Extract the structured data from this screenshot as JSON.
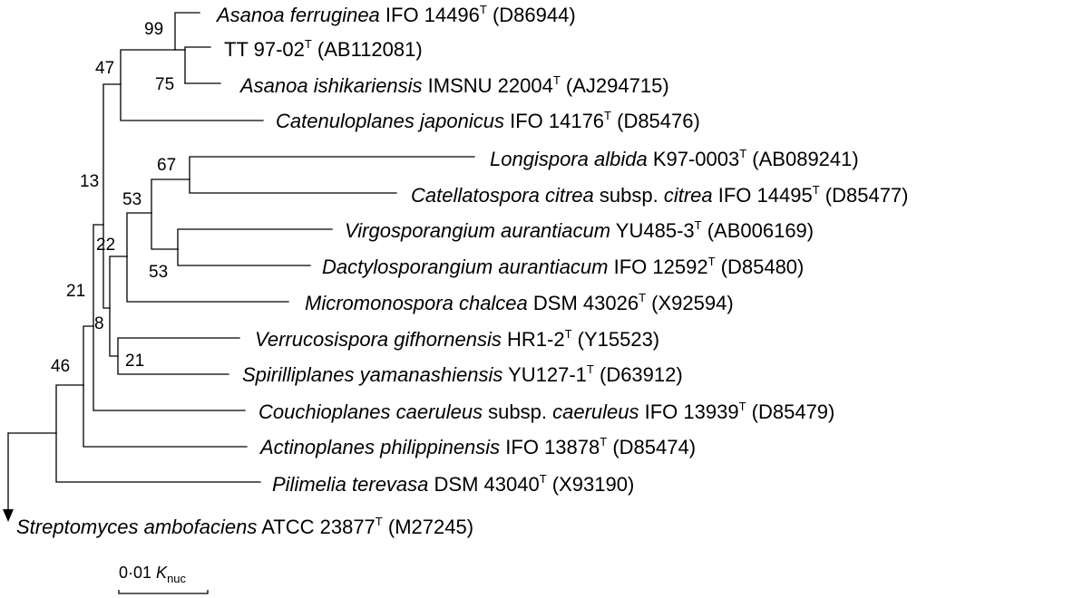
{
  "taxa": [
    {
      "id": "ferruginea",
      "italic": "Asanoa ferruginea",
      "rest": " IFO 14496",
      "sup": "T",
      "acc": " (D86944)"
    },
    {
      "id": "tt9702",
      "italic": "",
      "rest": "TT 97-02",
      "sup": "T",
      "acc": " (AB112081)"
    },
    {
      "id": "ishikariensis",
      "italic": "Asanoa ishikariensis",
      "rest": " IMSNU 22004",
      "sup": "T",
      "acc": " (AJ294715)"
    },
    {
      "id": "catenuloplanes",
      "italic": "Catenuloplanes japonicus",
      "rest": " IFO 14176",
      "sup": "T",
      "acc": " (D85476)"
    },
    {
      "id": "longispora",
      "italic": "Longispora albida",
      "rest": " K97-0003",
      "sup": "T",
      "acc": " (AB089241)"
    },
    {
      "id": "catellatospora",
      "italic": "Catellatospora citrea",
      "rest": " subsp. ",
      "italic2": "citrea",
      "rest2": " IFO 14495",
      "sup": "T",
      "acc": " (D85477)"
    },
    {
      "id": "virgosporangium",
      "italic": "Virgosporangium aurantiacum",
      "rest": " YU485-3",
      "sup": "T",
      "acc": " (AB006169)"
    },
    {
      "id": "dactylosporangium",
      "italic": "Dactylosporangium aurantiacum",
      "rest": " IFO 12592",
      "sup": "T",
      "acc": " (D85480)"
    },
    {
      "id": "micromonospora",
      "italic": "Micromonospora chalcea",
      "rest": " DSM 43026",
      "sup": "T",
      "acc": " (X92594)"
    },
    {
      "id": "verrucosispora",
      "italic": "Verrucosispora gifhornensis",
      "rest": " HR1-2",
      "sup": "T",
      "acc": " (Y15523)"
    },
    {
      "id": "spirilliplanes",
      "italic": "Spirilliplanes yamanashiensis",
      "rest": " YU127-1",
      "sup": "T",
      "acc": " (D63912)"
    },
    {
      "id": "couchioplanes",
      "italic": "Couchioplanes caeruleus",
      "rest": " subsp. ",
      "italic2": "caeruleus",
      "rest2": " IFO 13939",
      "sup": "T",
      "acc": " (D85479)"
    },
    {
      "id": "actinoplanes",
      "italic": "Actinoplanes philippinensis",
      "rest": " IFO 13878",
      "sup": "T",
      "acc": " (D85474)"
    },
    {
      "id": "pilimelia",
      "italic": "Pilimelia terevasa",
      "rest": " DSM 43040",
      "sup": "T",
      "acc": " (X93190)"
    },
    {
      "id": "streptomyces",
      "italic": "Streptomyces ambofaciens",
      "rest": " ATCC 23877",
      "sup": "T",
      "acc": " (M27245)"
    }
  ],
  "bootstrap": [
    {
      "id": "bs99",
      "value": "99"
    },
    {
      "id": "bs75",
      "value": "75"
    },
    {
      "id": "bs47",
      "value": "47"
    },
    {
      "id": "bs13",
      "value": "13"
    },
    {
      "id": "bs67",
      "value": "67"
    },
    {
      "id": "bs53a",
      "value": "53"
    },
    {
      "id": "bs22",
      "value": "22"
    },
    {
      "id": "bs53b",
      "value": "53"
    },
    {
      "id": "bs21a",
      "value": "21"
    },
    {
      "id": "bs8",
      "value": "8"
    },
    {
      "id": "bs21b",
      "value": "21"
    },
    {
      "id": "bs46",
      "value": "46"
    }
  ],
  "scale_bar": {
    "value": "0·01",
    "symbol": "K",
    "subscript": "nuc"
  },
  "colors": {
    "line": "#000000",
    "text": "#000000",
    "background": "#ffffff"
  }
}
